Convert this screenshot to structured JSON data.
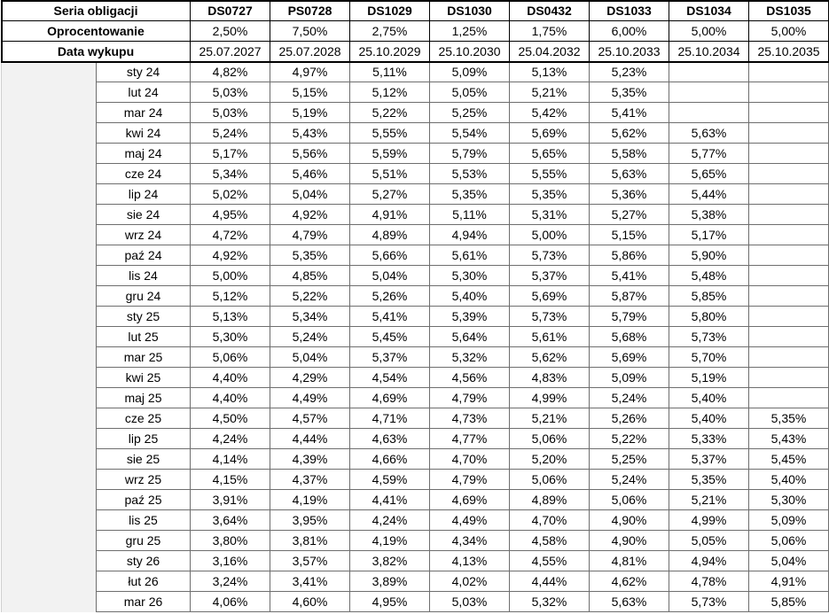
{
  "table": {
    "header_rows": [
      [
        "Seria obligacji",
        "DS0727",
        "PS0728",
        "DS1029",
        "DS1030",
        "DS0432",
        "DS1033",
        "DS1034",
        "DS1035"
      ],
      [
        "Oprocentowanie",
        "2,50%",
        "7,50%",
        "2,75%",
        "1,25%",
        "1,75%",
        "6,00%",
        "5,00%",
        "5,00%"
      ],
      [
        "Data wykupu",
        "25.07.2027",
        "25.07.2028",
        "25.10.2029",
        "25.10.2030",
        "25.04.2032",
        "25.10.2033",
        "25.10.2034",
        "25.10.2035"
      ]
    ],
    "rows": [
      [
        "sty 24",
        "4,82%",
        "4,97%",
        "5,11%",
        "5,09%",
        "5,13%",
        "5,23%",
        null,
        null
      ],
      [
        "lut 24",
        "5,03%",
        "5,15%",
        "5,12%",
        "5,05%",
        "5,21%",
        "5,35%",
        null,
        null
      ],
      [
        "mar 24",
        "5,03%",
        "5,19%",
        "5,22%",
        "5,25%",
        "5,42%",
        "5,41%",
        null,
        null
      ],
      [
        "kwi 24",
        "5,24%",
        "5,43%",
        "5,55%",
        "5,54%",
        "5,69%",
        "5,62%",
        "5,63%",
        null
      ],
      [
        "maj 24",
        "5,17%",
        "5,56%",
        "5,59%",
        "5,79%",
        "5,65%",
        "5,58%",
        "5,77%",
        null
      ],
      [
        "cze 24",
        "5,34%",
        "5,46%",
        "5,51%",
        "5,53%",
        "5,55%",
        "5,63%",
        "5,65%",
        null
      ],
      [
        "lip 24",
        "5,02%",
        "5,04%",
        "5,27%",
        "5,35%",
        "5,35%",
        "5,36%",
        "5,44%",
        null
      ],
      [
        "sie 24",
        "4,95%",
        "4,92%",
        "4,91%",
        "5,11%",
        "5,31%",
        "5,27%",
        "5,38%",
        null
      ],
      [
        "wrz 24",
        "4,72%",
        "4,79%",
        "4,89%",
        "4,94%",
        "5,00%",
        "5,15%",
        "5,17%",
        null
      ],
      [
        "paź 24",
        "4,92%",
        "5,35%",
        "5,66%",
        "5,61%",
        "5,73%",
        "5,86%",
        "5,90%",
        null
      ],
      [
        "lis 24",
        "5,00%",
        "4,85%",
        "5,04%",
        "5,30%",
        "5,37%",
        "5,41%",
        "5,48%",
        null
      ],
      [
        "gru 24",
        "5,12%",
        "5,22%",
        "5,26%",
        "5,40%",
        "5,69%",
        "5,87%",
        "5,85%",
        null
      ],
      [
        "sty 25",
        "5,13%",
        "5,34%",
        "5,41%",
        "5,39%",
        "5,73%",
        "5,79%",
        "5,80%",
        null
      ],
      [
        "lut 25",
        "5,30%",
        "5,24%",
        "5,45%",
        "5,64%",
        "5,61%",
        "5,68%",
        "5,73%",
        null
      ],
      [
        "mar 25",
        "5,06%",
        "5,04%",
        "5,37%",
        "5,32%",
        "5,62%",
        "5,69%",
        "5,70%",
        null
      ],
      [
        "kwi 25",
        "4,40%",
        "4,29%",
        "4,54%",
        "4,56%",
        "4,83%",
        "5,09%",
        "5,19%",
        null
      ],
      [
        "maj 25",
        "4,40%",
        "4,49%",
        "4,69%",
        "4,79%",
        "4,99%",
        "5,24%",
        "5,40%",
        null
      ],
      [
        "cze 25",
        "4,50%",
        "4,57%",
        "4,71%",
        "4,73%",
        "5,21%",
        "5,26%",
        "5,40%",
        "5,35%"
      ],
      [
        "lip 25",
        "4,24%",
        "4,44%",
        "4,63%",
        "4,77%",
        "5,06%",
        "5,22%",
        "5,33%",
        "5,43%"
      ],
      [
        "sie 25",
        "4,14%",
        "4,39%",
        "4,66%",
        "4,70%",
        "5,20%",
        "5,25%",
        "5,37%",
        "5,45%"
      ],
      [
        "wrz 25",
        "4,15%",
        "4,37%",
        "4,59%",
        "4,79%",
        "5,06%",
        "5,24%",
        "5,35%",
        "5,40%"
      ],
      [
        "paź 25",
        "3,91%",
        "4,19%",
        "4,41%",
        "4,69%",
        "4,89%",
        "5,06%",
        "5,21%",
        "5,30%"
      ],
      [
        "lis 25",
        "3,64%",
        "3,95%",
        "4,24%",
        "4,49%",
        "4,70%",
        "4,90%",
        "4,99%",
        "5,09%"
      ],
      [
        "gru 25",
        "3,80%",
        "3,81%",
        "4,19%",
        "4,34%",
        "4,58%",
        "4,90%",
        "5,05%",
        "5,06%"
      ],
      [
        "sty 26",
        "3,16%",
        "3,57%",
        "3,82%",
        "4,13%",
        "4,55%",
        "4,81%",
        "4,94%",
        "5,04%"
      ],
      [
        "łut 26",
        "3,24%",
        "3,41%",
        "3,89%",
        "4,02%",
        "4,44%",
        "4,62%",
        "4,78%",
        "4,91%"
      ],
      [
        "mar 26",
        "4,06%",
        "4,60%",
        "4,95%",
        "5,03%",
        "5,32%",
        "5,63%",
        "5,73%",
        "5,85%"
      ]
    ]
  }
}
